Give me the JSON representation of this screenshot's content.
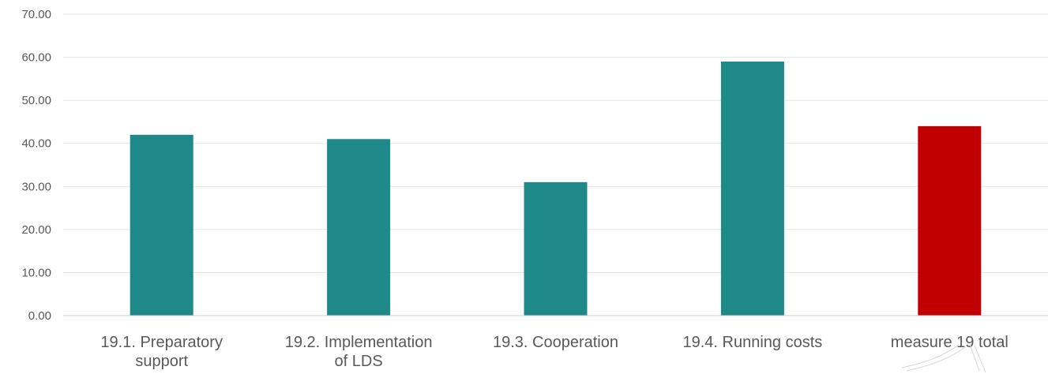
{
  "chart_data": {
    "type": "bar",
    "categories": [
      [
        "19.1. Preparatory",
        "support"
      ],
      [
        "19.2. Implementation",
        "of LDS"
      ],
      [
        "19.3. Cooperation"
      ],
      [
        "19.4. Running costs"
      ],
      [
        "measure 19 total"
      ]
    ],
    "values": [
      42,
      41,
      31,
      59,
      44
    ],
    "bar_colors": [
      "#1f8888",
      "#1f8888",
      "#1f8888",
      "#1f8888",
      "#c00000"
    ],
    "ylim": [
      0,
      70
    ],
    "yticks": [
      "0.00",
      "10.00",
      "20.00",
      "30.00",
      "40.00",
      "50.00",
      "60.00",
      "70.00"
    ],
    "grid": true,
    "legend": "none"
  }
}
